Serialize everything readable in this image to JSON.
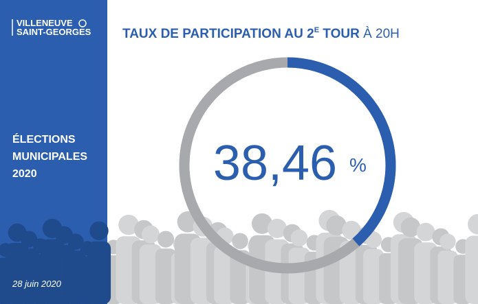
{
  "chart_data": {
    "type": "donut",
    "title_parts": [
      "TAUX DE PARTICIPATION AU 2",
      "E",
      " TOUR",
      " À 20H"
    ],
    "values": [
      38.46
    ],
    "value_labels": [
      "38,46"
    ],
    "unit": "%",
    "color": "#2b5eae",
    "track_color": "#a7a9ac",
    "sidebar": {
      "logo": [
        "VILLENEUVE",
        "SAINT-GEORGES"
      ],
      "heading": [
        "ÉLECTIONS",
        "MUNICIPALES",
        "2020"
      ],
      "date": "28 juin 2020",
      "color": "#2b5eae"
    }
  }
}
